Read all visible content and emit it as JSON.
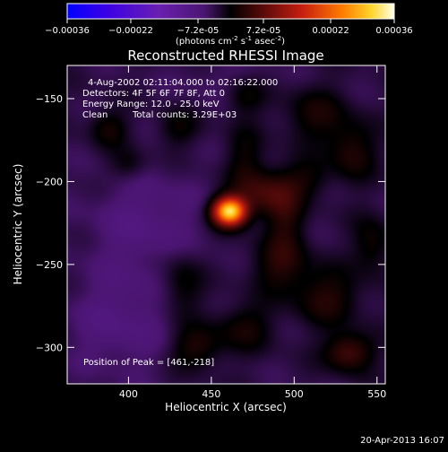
{
  "chart_data": {
    "type": "heatmap",
    "title": "Reconstructed RHESSI Image",
    "xlabel": "Heliocentric X (arcsec)",
    "ylabel": "Heliocentric Y (arcsec)",
    "xlim": [
      363,
      555
    ],
    "ylim": [
      -322,
      -130
    ],
    "xticks": [
      400,
      450,
      500,
      550
    ],
    "yticks": [
      -150,
      -200,
      -250,
      -300
    ],
    "colorbar": {
      "label_text": "(photons cm",
      "label_sup1": "-2",
      "label_mid": " s",
      "label_sup2": "-1",
      "label_tail": " asec",
      "label_sup3": "-2",
      "label_end": ")",
      "range": [
        -0.00036,
        0.00036
      ],
      "ticks": [
        "-0.00036",
        "-0.00022",
        "-7.2e-05",
        "7.2e-05",
        "0.00022",
        "0.00036"
      ],
      "tick_values": [
        -0.00036,
        -0.00022,
        -7.2e-05,
        7.2e-05,
        0.00022,
        0.00036
      ]
    },
    "annotations": {
      "time_range": "4-Aug-2002 02:11:04.000 to 02:16:22.000",
      "detectors": "Detectors: 4F 5F 6F 7F 8F, Att 0",
      "energy": "Energy Range: 12.0 - 25.0 keV",
      "method": "Clean",
      "counts": "Total counts: 3.29E+03",
      "peak": "Position of Peak = [461,-218]"
    },
    "peak": {
      "x": 461,
      "y": -218
    },
    "sources": [
      {
        "x": 461,
        "y": -218,
        "amp": 0.00036,
        "sx": 7,
        "sy": 6
      },
      {
        "x": 483,
        "y": -207,
        "amp": 8e-05,
        "sx": 12,
        "sy": 10
      },
      {
        "x": 470,
        "y": -186,
        "amp": 4e-05,
        "sx": 8,
        "sy": 14
      },
      {
        "x": 470,
        "y": -148,
        "amp": 5e-05,
        "sx": 9,
        "sy": 8
      },
      {
        "x": 513,
        "y": -160,
        "amp": 5e-05,
        "sx": 14,
        "sy": 12
      },
      {
        "x": 535,
        "y": -182,
        "amp": 6e-05,
        "sx": 10,
        "sy": 12
      },
      {
        "x": 388,
        "y": -168,
        "amp": 5e-05,
        "sx": 8,
        "sy": 8
      },
      {
        "x": 400,
        "y": -190,
        "amp": 4e-05,
        "sx": 8,
        "sy": 7
      },
      {
        "x": 430,
        "y": -168,
        "amp": 4e-05,
        "sx": 9,
        "sy": 8
      },
      {
        "x": 432,
        "y": -262,
        "amp": 5e-05,
        "sx": 9,
        "sy": 14
      },
      {
        "x": 441,
        "y": -300,
        "amp": 6e-05,
        "sx": 11,
        "sy": 9
      },
      {
        "x": 470,
        "y": -288,
        "amp": 5e-05,
        "sx": 12,
        "sy": 10
      },
      {
        "x": 492,
        "y": -250,
        "amp": 6e-05,
        "sx": 12,
        "sy": 12
      },
      {
        "x": 520,
        "y": -270,
        "amp": 6e-05,
        "sx": 14,
        "sy": 12
      },
      {
        "x": 533,
        "y": -303,
        "amp": 9e-05,
        "sx": 10,
        "sy": 8
      },
      {
        "x": 495,
        "y": -222,
        "amp": 5e-05,
        "sx": 8,
        "sy": 14
      },
      {
        "x": 508,
        "y": -198,
        "amp": 4e-05,
        "sx": 10,
        "sy": 8
      },
      {
        "x": 547,
        "y": -238,
        "amp": 5e-05,
        "sx": 8,
        "sy": 12
      },
      {
        "x": 410,
        "y": -225,
        "amp": -4e-05,
        "sx": 24,
        "sy": 22
      },
      {
        "x": 395,
        "y": -285,
        "amp": -4e-05,
        "sx": 22,
        "sy": 22
      },
      {
        "x": 460,
        "y": -140,
        "amp": -2e-05,
        "sx": 20,
        "sy": 10
      }
    ],
    "background": -3.5e-05
  },
  "footer": {
    "timestamp": "20-Apr-2013 16:07"
  }
}
